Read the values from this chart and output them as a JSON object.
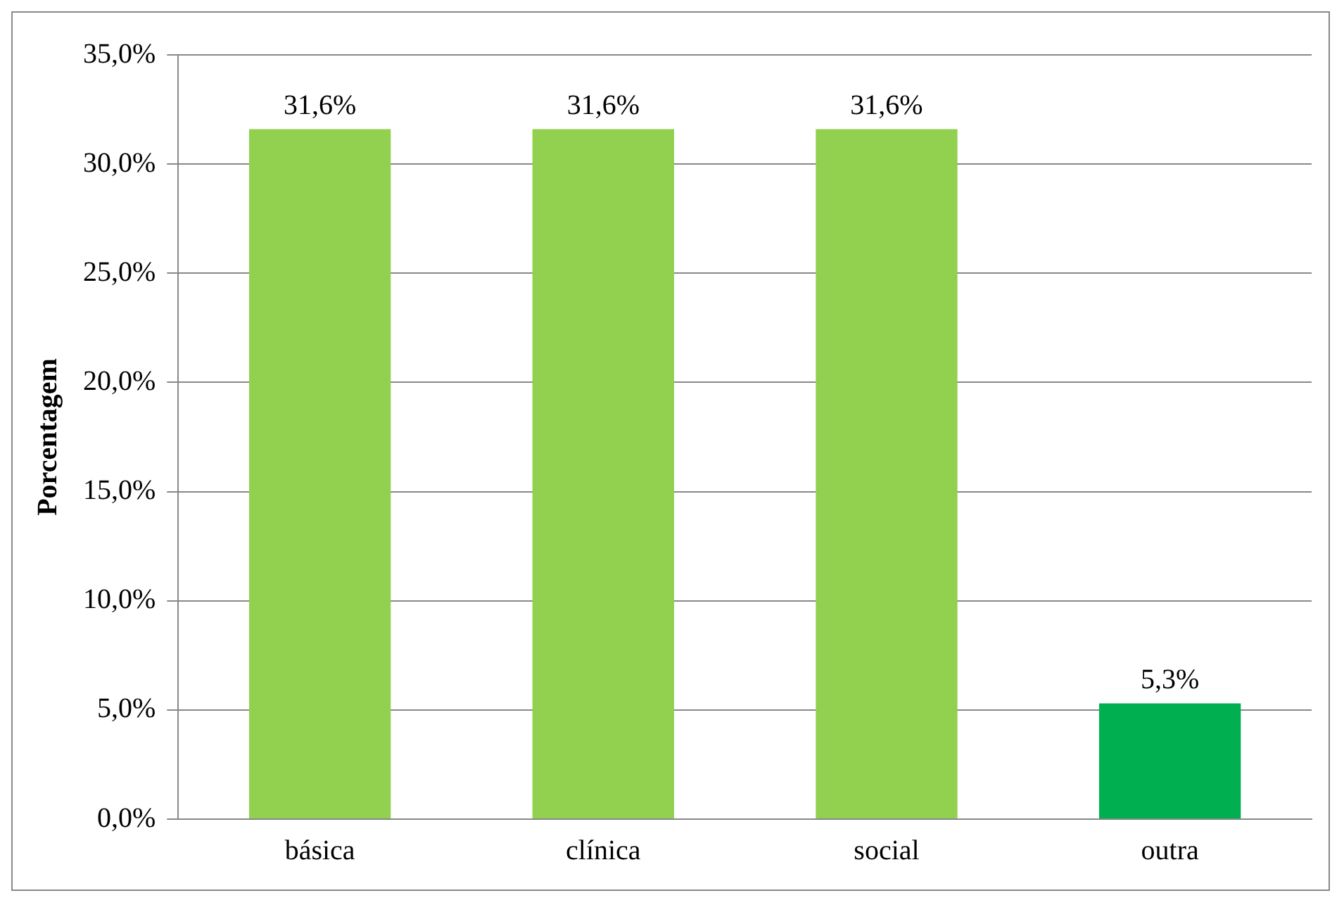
{
  "chart_data": {
    "type": "bar",
    "ylabel": "Porcentagem",
    "categories": [
      "básica",
      "clínica",
      "social",
      "outra"
    ],
    "values": [
      31.6,
      31.6,
      31.6,
      5.3
    ],
    "colors": [
      "#92d050",
      "#92d050",
      "#92d050",
      "#00b050"
    ],
    "value_labels": [
      "31,6%",
      "31,6%",
      "31,6%",
      "5,3%"
    ],
    "ylim": [
      0,
      35
    ],
    "yticks": [
      {
        "value": 0,
        "label": "0,0%"
      },
      {
        "value": 5,
        "label": "5,0%"
      },
      {
        "value": 10,
        "label": "10,0%"
      },
      {
        "value": 15,
        "label": "15,0%"
      },
      {
        "value": 20,
        "label": "20,0%"
      },
      {
        "value": 25,
        "label": "25,0%"
      },
      {
        "value": 30,
        "label": "30,0%"
      },
      {
        "value": 35,
        "label": "35,0%"
      }
    ],
    "grid": "y",
    "legend": false
  }
}
